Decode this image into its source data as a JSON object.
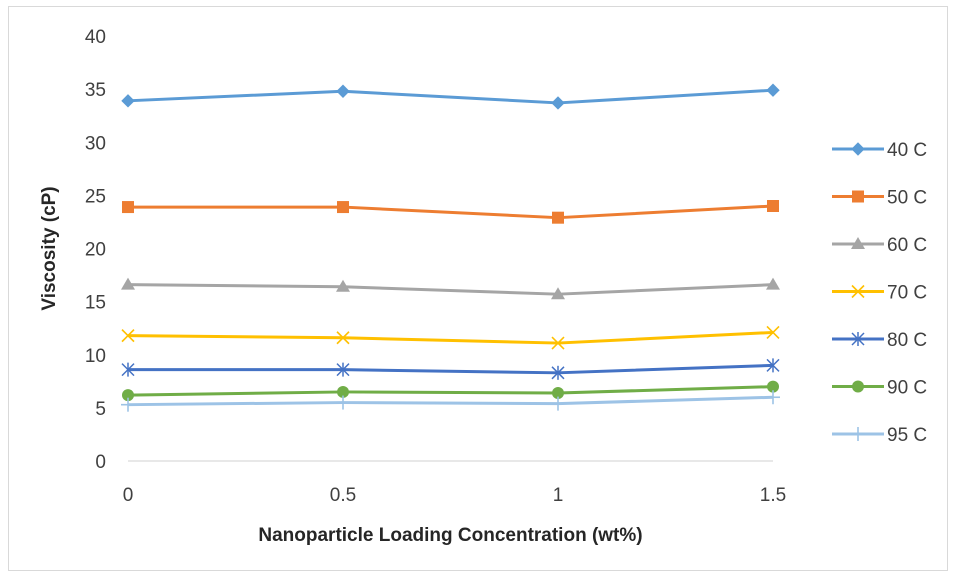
{
  "chart_data": {
    "type": "line",
    "xlabel": "Nanoparticle Loading Concentration (wt%)",
    "ylabel": "Viscosity (cP)",
    "x": [
      0,
      0.5,
      1,
      1.5
    ],
    "x_tick_labels": [
      "0",
      "0.5",
      "1",
      "1.5"
    ],
    "ylim": [
      0,
      40
    ],
    "y_ticks": [
      0,
      5,
      10,
      15,
      20,
      25,
      30,
      35,
      40
    ],
    "grid": false,
    "legend_position": "right",
    "series": [
      {
        "name": "40 C",
        "values": [
          33.9,
          34.8,
          33.7,
          34.9
        ],
        "color": "#5B9BD5",
        "marker": "diamond"
      },
      {
        "name": "50 C",
        "values": [
          23.9,
          23.9,
          22.9,
          24.0
        ],
        "color": "#ED7D31",
        "marker": "square"
      },
      {
        "name": "60 C",
        "values": [
          16.6,
          16.4,
          15.7,
          16.6
        ],
        "color": "#A5A5A5",
        "marker": "triangle"
      },
      {
        "name": "70 C",
        "values": [
          11.8,
          11.6,
          11.1,
          12.1
        ],
        "color": "#FFC000",
        "marker": "x"
      },
      {
        "name": "80 C",
        "values": [
          8.6,
          8.6,
          8.3,
          9.0
        ],
        "color": "#4472C4",
        "marker": "star"
      },
      {
        "name": "90 C",
        "values": [
          6.2,
          6.5,
          6.4,
          7.0
        ],
        "color": "#70AD47",
        "marker": "circle"
      },
      {
        "name": "95 C",
        "values": [
          5.3,
          5.5,
          5.4,
          6.0
        ],
        "color": "#9DC3E6",
        "marker": "plus"
      }
    ]
  }
}
